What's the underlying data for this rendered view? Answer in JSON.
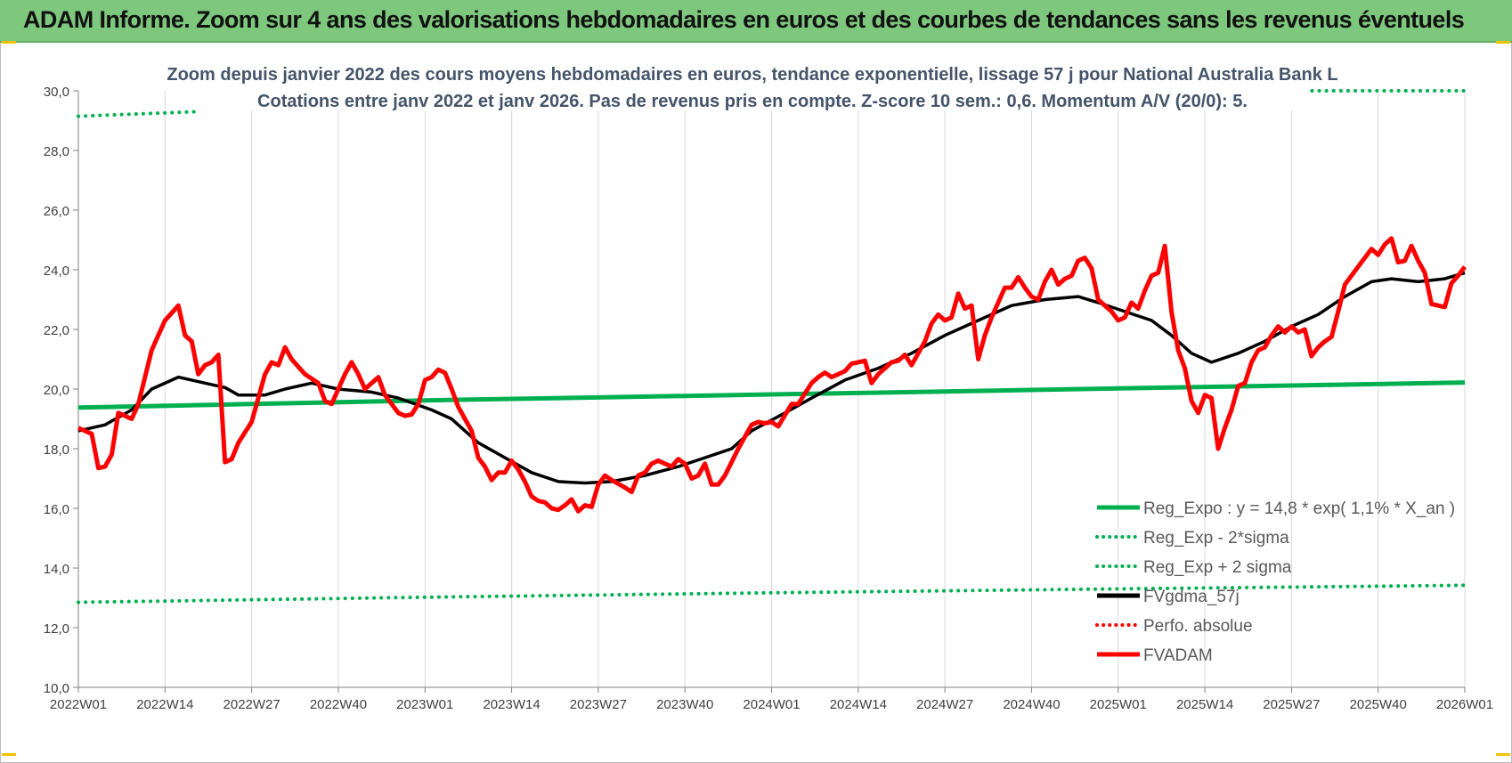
{
  "banner": {
    "title": "ADAM Informe. Zoom sur 4 ans des valorisations hebdomadaires en euros et des courbes de tendances sans les revenus éventuels",
    "color": "#7dc87d"
  },
  "chart_data": {
    "type": "line",
    "title": "Zoom depuis janvier 2022 des cours moyens hebdomadaires en euros, tendance exponentielle, lissage 57 j pour National Australia Bank L",
    "subtitle": "Cotations entre janv 2022 et janv 2026. Pas de revenus pris en compte. Z-score 10 sem.: 0,6. Momentum A/V (20/0): 5.",
    "xlabel": "",
    "ylabel": "",
    "ylim": [
      10,
      30
    ],
    "yticks": [
      "10,0",
      "12,0",
      "14,0",
      "16,0",
      "18,0",
      "20,0",
      "22,0",
      "24,0",
      "26,0",
      "28,0",
      "30,0"
    ],
    "xlim": [
      0,
      208
    ],
    "xticks": [
      {
        "x": 0,
        "label": "2022W01"
      },
      {
        "x": 13,
        "label": "2022W14"
      },
      {
        "x": 26,
        "label": "2022W27"
      },
      {
        "x": 39,
        "label": "2022W40"
      },
      {
        "x": 52,
        "label": "2023W01"
      },
      {
        "x": 65,
        "label": "2023W14"
      },
      {
        "x": 78,
        "label": "2023W27"
      },
      {
        "x": 91,
        "label": "2023W40"
      },
      {
        "x": 104,
        "label": "2024W01"
      },
      {
        "x": 117,
        "label": "2024W14"
      },
      {
        "x": 130,
        "label": "2024W27"
      },
      {
        "x": 143,
        "label": "2024W40"
      },
      {
        "x": 156,
        "label": "2025W01"
      },
      {
        "x": 169,
        "label": "2025W14"
      },
      {
        "x": 182,
        "label": "2025W27"
      },
      {
        "x": 195,
        "label": "2025W40"
      },
      {
        "x": 208,
        "label": "2026W01"
      }
    ],
    "grid": "vertical",
    "legend_position": "bottom-right",
    "series": [
      {
        "name": "Reg_Expo : y = 14,8 * exp( 1,1% *  X_an )",
        "color": "#00b050",
        "style": "solid",
        "width": 5,
        "points": [
          [
            0,
            19.38
          ],
          [
            26,
            19.5
          ],
          [
            52,
            19.62
          ],
          [
            78,
            19.72
          ],
          [
            104,
            19.82
          ],
          [
            130,
            19.92
          ],
          [
            156,
            20.02
          ],
          [
            182,
            20.12
          ],
          [
            208,
            20.22
          ]
        ]
      },
      {
        "name": "Reg_Exp - 2*sigma",
        "color": "#00b050",
        "style": "dotted",
        "width": 4,
        "points": [
          [
            0,
            12.85
          ],
          [
            52,
            13.02
          ],
          [
            104,
            13.17
          ],
          [
            156,
            13.3
          ],
          [
            208,
            13.42
          ]
        ]
      },
      {
        "name": "Reg_Exp + 2 sigma",
        "color": "#00b050",
        "style": "dotted",
        "width": 4,
        "points": [
          [
            0,
            29.15
          ],
          [
            18,
            29.3
          ],
          [
            null,
            null
          ],
          [
            184,
            30.0
          ],
          [
            208,
            30.0
          ]
        ]
      },
      {
        "name": "FVgdma_57j",
        "color": "#000000",
        "style": "solid",
        "width": 3.5,
        "points": [
          [
            0,
            18.6
          ],
          [
            4,
            18.8
          ],
          [
            8,
            19.3
          ],
          [
            11,
            20.0
          ],
          [
            15,
            20.4
          ],
          [
            19,
            20.2
          ],
          [
            22,
            20.05
          ],
          [
            24,
            19.8
          ],
          [
            28,
            19.8
          ],
          [
            31,
            20.0
          ],
          [
            35,
            20.2
          ],
          [
            39,
            20.0
          ],
          [
            44,
            19.9
          ],
          [
            48,
            19.7
          ],
          [
            53,
            19.3
          ],
          [
            56,
            19.0
          ],
          [
            60,
            18.2
          ],
          [
            64,
            17.7
          ],
          [
            68,
            17.2
          ],
          [
            72,
            16.9
          ],
          [
            76,
            16.85
          ],
          [
            80,
            16.9
          ],
          [
            85,
            17.1
          ],
          [
            90,
            17.4
          ],
          [
            94,
            17.7
          ],
          [
            98,
            18.0
          ],
          [
            101,
            18.6
          ],
          [
            106,
            19.2
          ],
          [
            110,
            19.7
          ],
          [
            115,
            20.3
          ],
          [
            120,
            20.7
          ],
          [
            125,
            21.2
          ],
          [
            130,
            21.8
          ],
          [
            135,
            22.3
          ],
          [
            140,
            22.8
          ],
          [
            145,
            23.0
          ],
          [
            150,
            23.1
          ],
          [
            153,
            22.9
          ],
          [
            157,
            22.6
          ],
          [
            161,
            22.3
          ],
          [
            164,
            21.8
          ],
          [
            167,
            21.2
          ],
          [
            170,
            20.9
          ],
          [
            174,
            21.2
          ],
          [
            178,
            21.6
          ],
          [
            182,
            22.1
          ],
          [
            186,
            22.5
          ],
          [
            190,
            23.1
          ],
          [
            194,
            23.6
          ],
          [
            197,
            23.7
          ],
          [
            201,
            23.6
          ],
          [
            205,
            23.7
          ],
          [
            208,
            23.9
          ]
        ]
      },
      {
        "name": "Perfo. absolue",
        "color": "#ff0000",
        "style": "dotted",
        "width": 3,
        "points": []
      },
      {
        "name": "FVADAM",
        "color": "#ff0000",
        "style": "solid",
        "width": 5,
        "points": [
          [
            0,
            18.7
          ],
          [
            2,
            18.5
          ],
          [
            3,
            17.35
          ],
          [
            4,
            17.4
          ],
          [
            5,
            17.8
          ],
          [
            6,
            19.2
          ],
          [
            8,
            19.0
          ],
          [
            9,
            19.5
          ],
          [
            11,
            21.3
          ],
          [
            13,
            22.3
          ],
          [
            15,
            22.8
          ],
          [
            16,
            21.8
          ],
          [
            17,
            21.6
          ],
          [
            18,
            20.5
          ],
          [
            19,
            20.8
          ],
          [
            20,
            20.9
          ],
          [
            21,
            21.15
          ],
          [
            22,
            17.55
          ],
          [
            23,
            17.65
          ],
          [
            24,
            18.2
          ],
          [
            26,
            18.9
          ],
          [
            28,
            20.5
          ],
          [
            29,
            20.9
          ],
          [
            30,
            20.8
          ],
          [
            31,
            21.4
          ],
          [
            32,
            21.0
          ],
          [
            34,
            20.5
          ],
          [
            36,
            20.2
          ],
          [
            37,
            19.6
          ],
          [
            38,
            19.5
          ],
          [
            39,
            20.0
          ],
          [
            40,
            20.5
          ],
          [
            41,
            20.9
          ],
          [
            42,
            20.5
          ],
          [
            43,
            20.0
          ],
          [
            45,
            20.4
          ],
          [
            46,
            19.8
          ],
          [
            48,
            19.2
          ],
          [
            49,
            19.1
          ],
          [
            50,
            19.15
          ],
          [
            51,
            19.5
          ],
          [
            52,
            20.3
          ],
          [
            53,
            20.4
          ],
          [
            54,
            20.65
          ],
          [
            55,
            20.55
          ],
          [
            56,
            20.0
          ],
          [
            57,
            19.4
          ],
          [
            59,
            18.6
          ],
          [
            60,
            17.7
          ],
          [
            61,
            17.4
          ],
          [
            62,
            16.95
          ],
          [
            63,
            17.2
          ],
          [
            64,
            17.2
          ],
          [
            65,
            17.6
          ],
          [
            66,
            17.3
          ],
          [
            67,
            16.9
          ],
          [
            68,
            16.4
          ],
          [
            69,
            16.25
          ],
          [
            70,
            16.2
          ],
          [
            71,
            16.0
          ],
          [
            72,
            15.95
          ],
          [
            73,
            16.1
          ],
          [
            74,
            16.3
          ],
          [
            75,
            15.9
          ],
          [
            76,
            16.1
          ],
          [
            77,
            16.05
          ],
          [
            78,
            16.8
          ],
          [
            79,
            17.1
          ],
          [
            80,
            16.95
          ],
          [
            82,
            16.7
          ],
          [
            83,
            16.55
          ],
          [
            84,
            17.1
          ],
          [
            85,
            17.2
          ],
          [
            86,
            17.5
          ],
          [
            87,
            17.6
          ],
          [
            88,
            17.5
          ],
          [
            89,
            17.4
          ],
          [
            90,
            17.65
          ],
          [
            91,
            17.5
          ],
          [
            92,
            17.0
          ],
          [
            93,
            17.1
          ],
          [
            94,
            17.5
          ],
          [
            95,
            16.8
          ],
          [
            96,
            16.8
          ],
          [
            97,
            17.1
          ],
          [
            99,
            18.0
          ],
          [
            101,
            18.8
          ],
          [
            102,
            18.9
          ],
          [
            103,
            18.85
          ],
          [
            104,
            18.9
          ],
          [
            105,
            18.75
          ],
          [
            107,
            19.5
          ],
          [
            108,
            19.5
          ],
          [
            110,
            20.2
          ],
          [
            111,
            20.4
          ],
          [
            112,
            20.55
          ],
          [
            113,
            20.4
          ],
          [
            114,
            20.5
          ],
          [
            115,
            20.6
          ],
          [
            116,
            20.85
          ],
          [
            117,
            20.9
          ],
          [
            118,
            20.95
          ],
          [
            119,
            20.2
          ],
          [
            120,
            20.5
          ],
          [
            121,
            20.7
          ],
          [
            122,
            20.9
          ],
          [
            123,
            20.95
          ],
          [
            124,
            21.15
          ],
          [
            125,
            20.8
          ],
          [
            126,
            21.2
          ],
          [
            127,
            21.6
          ],
          [
            128,
            22.2
          ],
          [
            129,
            22.5
          ],
          [
            130,
            22.3
          ],
          [
            131,
            22.4
          ],
          [
            132,
            23.2
          ],
          [
            133,
            22.7
          ],
          [
            134,
            22.8
          ],
          [
            135,
            21.0
          ],
          [
            136,
            21.8
          ],
          [
            137,
            22.4
          ],
          [
            138,
            22.9
          ],
          [
            139,
            23.4
          ],
          [
            140,
            23.4
          ],
          [
            141,
            23.75
          ],
          [
            142,
            23.4
          ],
          [
            143,
            23.1
          ],
          [
            144,
            23.0
          ],
          [
            145,
            23.6
          ],
          [
            146,
            24.0
          ],
          [
            147,
            23.5
          ],
          [
            148,
            23.7
          ],
          [
            149,
            23.8
          ],
          [
            150,
            24.3
          ],
          [
            151,
            24.4
          ],
          [
            152,
            24.05
          ],
          [
            153,
            23.0
          ],
          [
            154,
            22.8
          ],
          [
            155,
            22.6
          ],
          [
            156,
            22.3
          ],
          [
            157,
            22.4
          ],
          [
            158,
            22.9
          ],
          [
            159,
            22.7
          ],
          [
            160,
            23.3
          ],
          [
            161,
            23.8
          ],
          [
            162,
            23.9
          ],
          [
            163,
            24.8
          ],
          [
            164,
            22.6
          ],
          [
            165,
            21.3
          ],
          [
            166,
            20.7
          ],
          [
            167,
            19.6
          ],
          [
            168,
            19.2
          ],
          [
            169,
            19.8
          ],
          [
            170,
            19.7
          ],
          [
            171,
            18.0
          ],
          [
            172,
            18.7
          ],
          [
            173,
            19.3
          ],
          [
            174,
            20.1
          ],
          [
            175,
            20.2
          ],
          [
            176,
            20.9
          ],
          [
            177,
            21.3
          ],
          [
            178,
            21.4
          ],
          [
            179,
            21.8
          ],
          [
            180,
            22.1
          ],
          [
            181,
            21.9
          ],
          [
            182,
            22.1
          ],
          [
            183,
            21.9
          ],
          [
            184,
            22.0
          ],
          [
            185,
            21.1
          ],
          [
            186,
            21.4
          ],
          [
            187,
            21.6
          ],
          [
            188,
            21.75
          ],
          [
            189,
            22.6
          ],
          [
            190,
            23.5
          ],
          [
            191,
            23.8
          ],
          [
            192,
            24.1
          ],
          [
            193,
            24.4
          ],
          [
            194,
            24.7
          ],
          [
            195,
            24.5
          ],
          [
            196,
            24.85
          ],
          [
            197,
            25.05
          ],
          [
            198,
            24.25
          ],
          [
            199,
            24.3
          ],
          [
            200,
            24.8
          ],
          [
            201,
            24.3
          ],
          [
            202,
            23.9
          ],
          [
            203,
            22.85
          ],
          [
            204,
            22.8
          ],
          [
            205,
            22.75
          ],
          [
            206,
            23.55
          ],
          [
            207,
            23.8
          ],
          [
            208,
            24.1
          ]
        ]
      }
    ]
  }
}
